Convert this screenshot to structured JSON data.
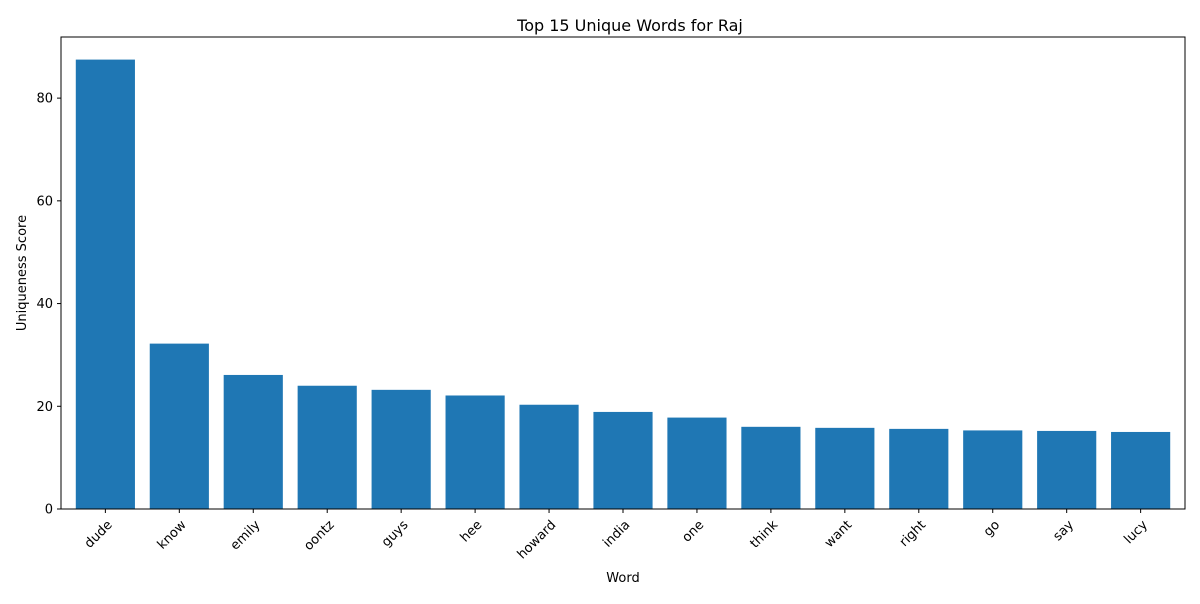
{
  "chart_data": {
    "type": "bar",
    "title": "Top 15 Unique Words for Raj",
    "xlabel": "Word",
    "ylabel": "Uniqueness Score",
    "categories": [
      "dude",
      "know",
      "emily",
      "oontz",
      "guys",
      "hee",
      "howard",
      "india",
      "one",
      "think",
      "want",
      "right",
      "go",
      "say",
      "lucy"
    ],
    "values": [
      87.5,
      32.2,
      26.1,
      24.0,
      23.2,
      22.1,
      20.3,
      18.9,
      17.8,
      16.0,
      15.8,
      15.6,
      15.3,
      15.2,
      15.0
    ],
    "ylim": [
      0,
      91.9
    ],
    "yticks": [
      0,
      20,
      40,
      60,
      80
    ],
    "bar_color": "#1f77b4",
    "grid": false,
    "xtick_rotation_deg": 45
  }
}
